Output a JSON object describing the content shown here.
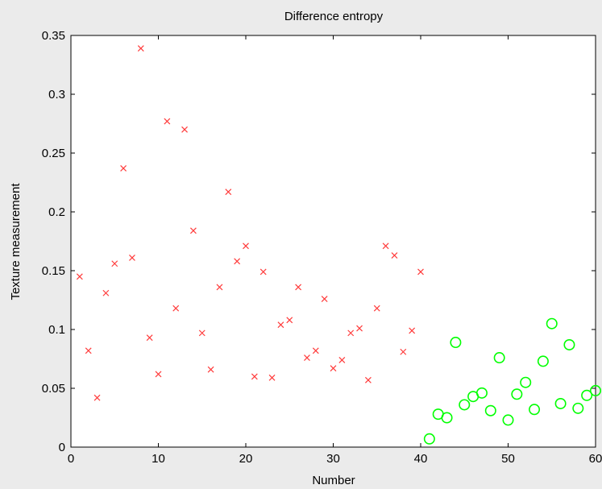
{
  "chart_data": {
    "type": "scatter",
    "title": "Difference entropy",
    "xlabel": "Number",
    "ylabel": "Texture measurement",
    "xlim": [
      0,
      60
    ],
    "ylim": [
      0,
      0.35
    ],
    "xticks": [
      "0",
      "10",
      "20",
      "30",
      "40",
      "50",
      "60"
    ],
    "yticks": [
      "0",
      "0.05",
      "0.1",
      "0.15",
      "0.2",
      "0.25",
      "0.3",
      "0.35"
    ],
    "grid": false,
    "series": [
      {
        "marker": "x",
        "color": "#ff3b3b",
        "x": [
          1,
          2,
          3,
          4,
          5,
          6,
          7,
          8,
          9,
          10,
          11,
          12,
          13,
          14,
          15,
          16,
          17,
          18,
          19,
          20,
          21,
          22,
          23,
          24,
          25,
          26,
          27,
          28,
          29,
          30,
          31,
          32,
          33,
          34,
          35,
          36,
          37,
          38,
          39,
          40
        ],
        "y": [
          0.145,
          0.082,
          0.042,
          0.131,
          0.156,
          0.237,
          0.161,
          0.339,
          0.093,
          0.062,
          0.277,
          0.118,
          0.27,
          0.184,
          0.097,
          0.066,
          0.136,
          0.217,
          0.158,
          0.171,
          0.06,
          0.149,
          0.059,
          0.104,
          0.108,
          0.136,
          0.076,
          0.082,
          0.126,
          0.067,
          0.074,
          0.097,
          0.101,
          0.057,
          0.118,
          0.171,
          0.163,
          0.081,
          0.099,
          0.149
        ]
      },
      {
        "marker": "o",
        "color": "#00ff00",
        "x": [
          41,
          42,
          43,
          44,
          45,
          46,
          47,
          48,
          49,
          50,
          51,
          52,
          53,
          54,
          55,
          56,
          57,
          58,
          59,
          60
        ],
        "y": [
          0.007,
          0.028,
          0.025,
          0.089,
          0.036,
          0.043,
          0.046,
          0.031,
          0.076,
          0.023,
          0.045,
          0.055,
          0.032,
          0.073,
          0.105,
          0.037,
          0.087,
          0.033,
          0.044,
          0.048
        ]
      }
    ]
  }
}
